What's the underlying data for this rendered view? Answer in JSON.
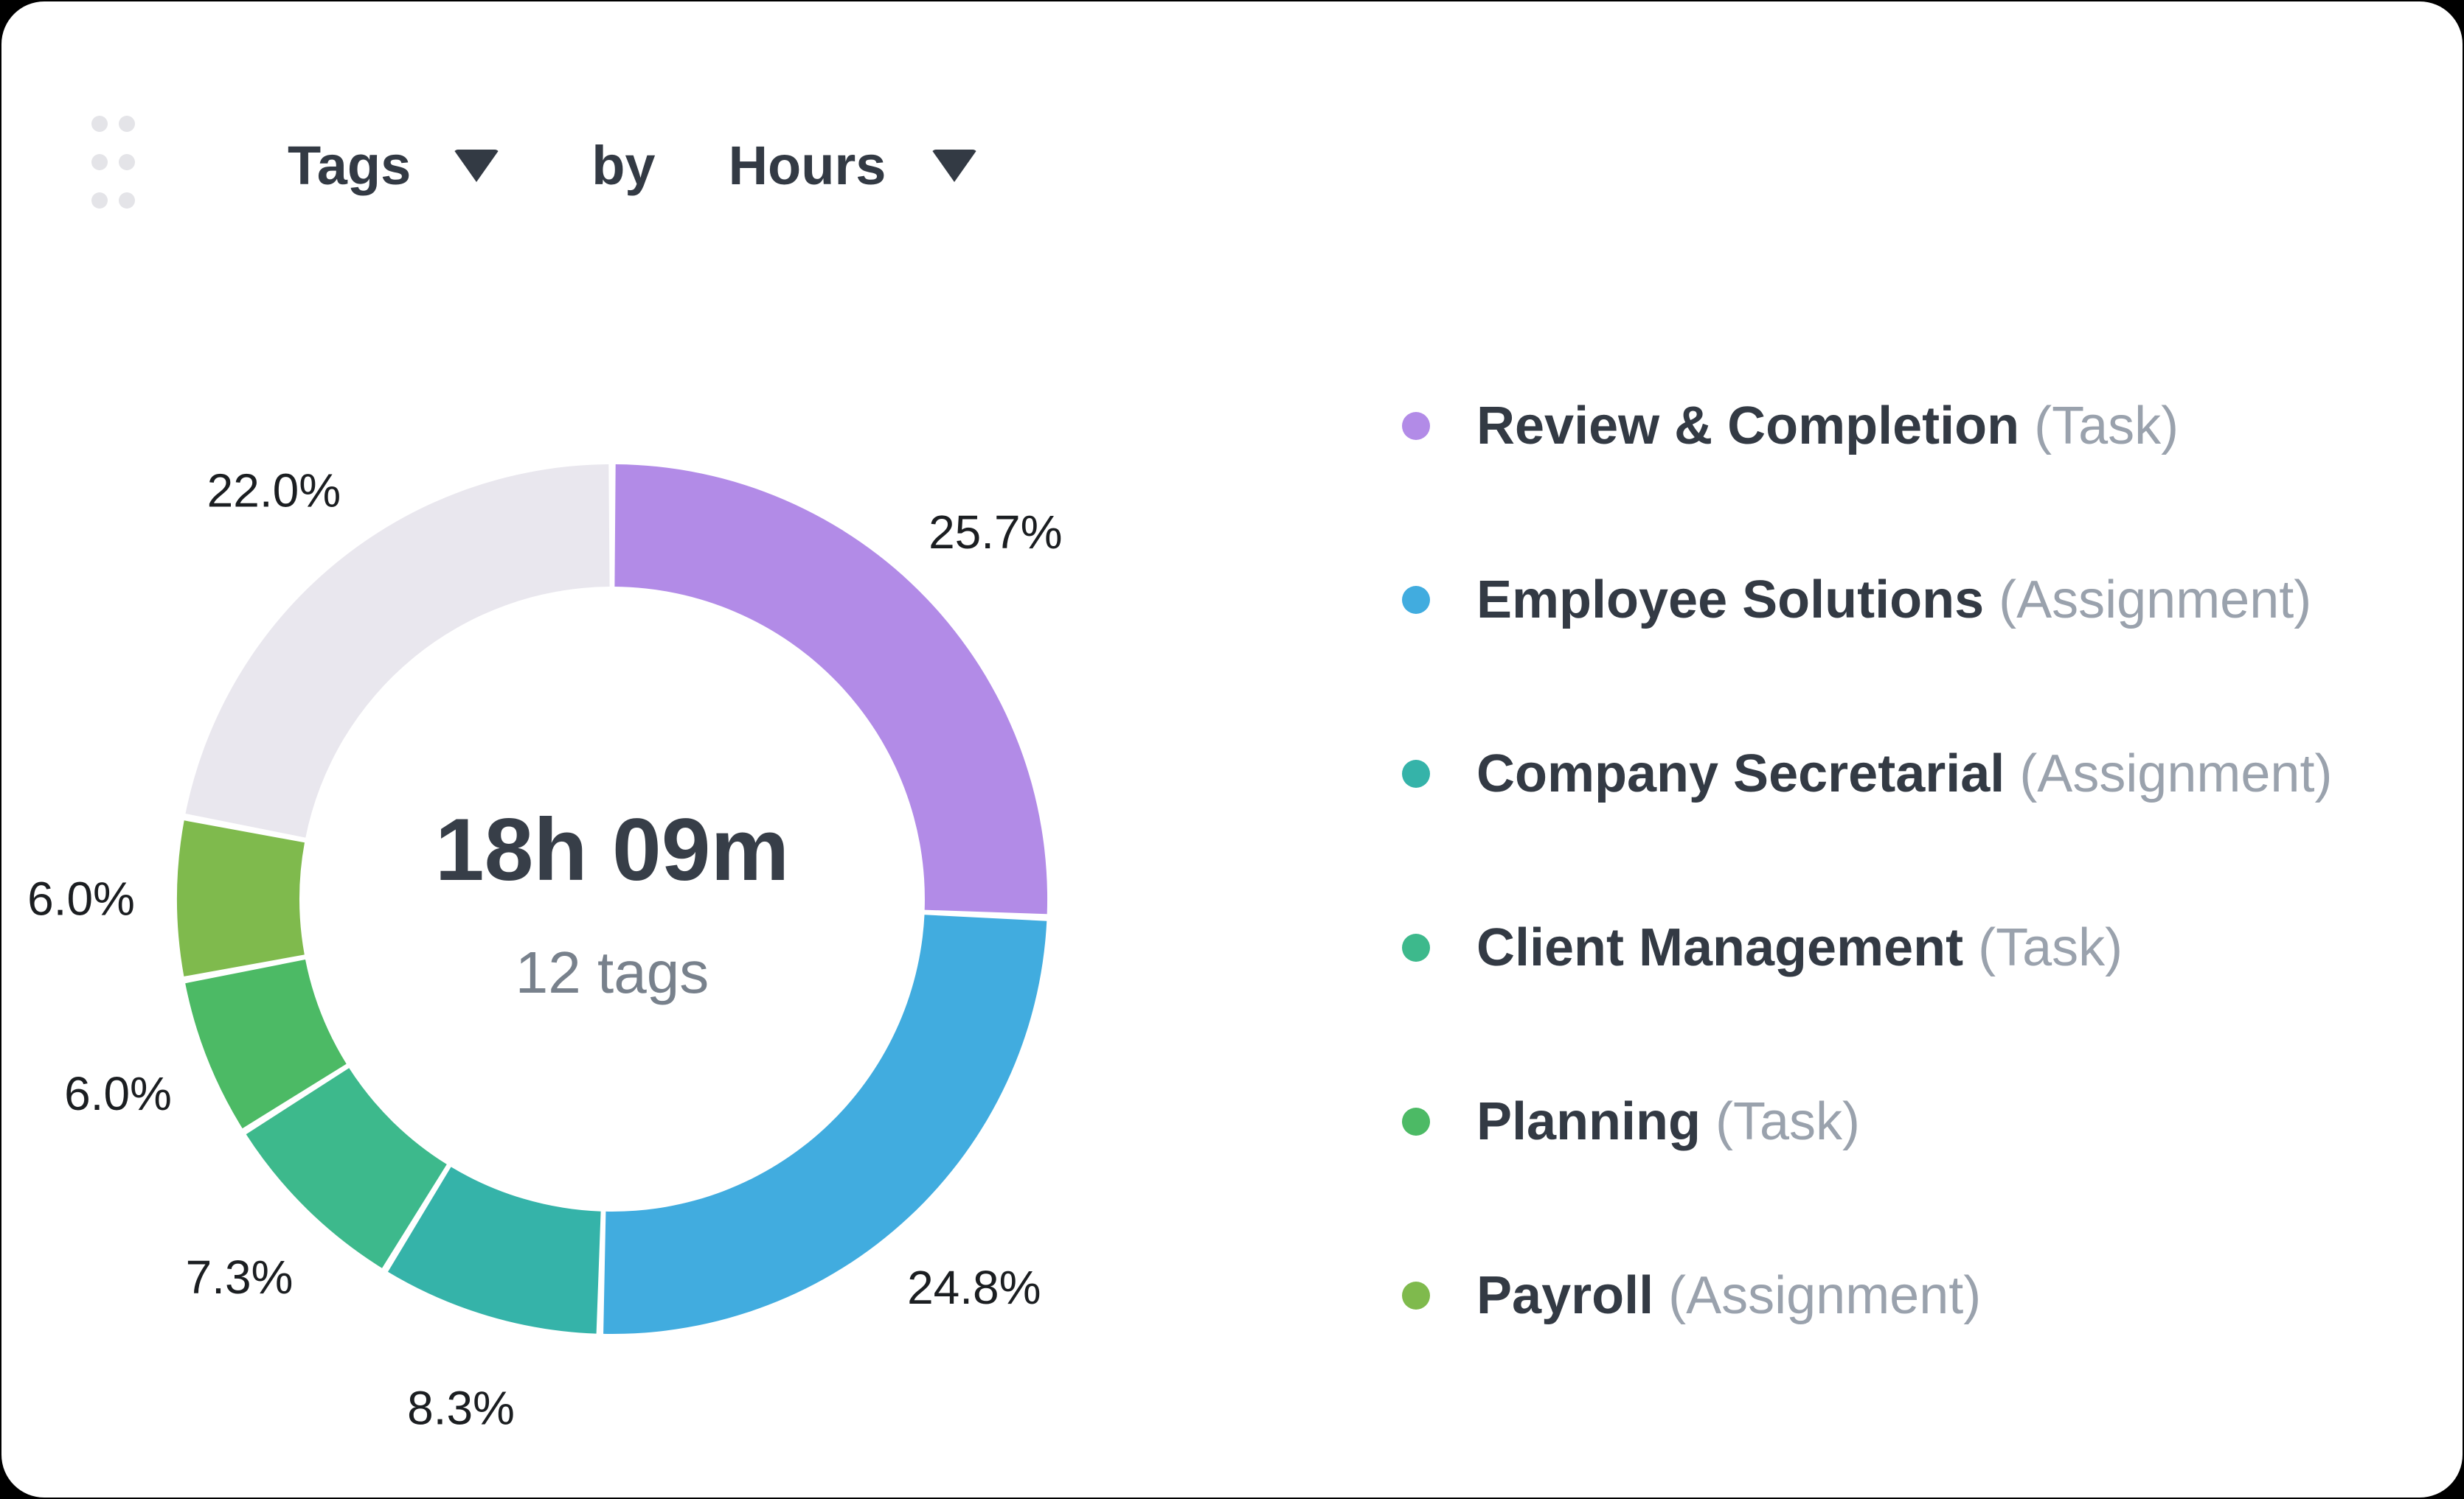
{
  "header": {
    "dimension_label": "Tags",
    "by_label": "by",
    "metric_label": "Hours"
  },
  "chart_data": {
    "type": "pie",
    "variant": "donut",
    "title": "Tags by Hours",
    "center_title": "18h 09m",
    "center_subtitle": "12 tags",
    "start_angle_deg": 0,
    "direction": "clockwise",
    "legend_position": "right",
    "slices": [
      {
        "name": "Review & Completion",
        "category": "Task",
        "percent": 25.7,
        "percent_label": "25.7%",
        "color": "#b28be7",
        "in_legend": true
      },
      {
        "name": "Employee Solutions",
        "category": "Assignment",
        "percent": 24.8,
        "percent_label": "24.8%",
        "color": "#41acdf",
        "in_legend": true
      },
      {
        "name": "Company Secretarial",
        "category": "Assignment",
        "percent": 8.3,
        "percent_label": "8.3%",
        "color": "#35b3a9",
        "in_legend": true
      },
      {
        "name": "Client Management",
        "category": "Task",
        "percent": 7.3,
        "percent_label": "7.3%",
        "color": "#3db98c",
        "in_legend": true
      },
      {
        "name": "Planning",
        "category": "Task",
        "percent": 6.0,
        "percent_label": "6.0%",
        "color": "#4cba65",
        "in_legend": true
      },
      {
        "name": "Payroll",
        "category": "Assignment",
        "percent": 6.0,
        "percent_label": "6.0%",
        "color": "#7fba4d",
        "in_legend": true
      },
      {
        "name": "",
        "category": "",
        "percent": 22.0,
        "percent_label": "22.0%",
        "color": "#e9e7ee",
        "in_legend": false
      }
    ]
  },
  "legend": {
    "items": [
      {
        "name": "Review & Completion",
        "type_label": "(Task)",
        "color": "#b28be7"
      },
      {
        "name": "Employee Solutions",
        "type_label": "(Assignment)",
        "color": "#41acdf"
      },
      {
        "name": "Company Secretarial",
        "type_label": "(Assignment)",
        "color": "#35b3a9"
      },
      {
        "name": "Client Management",
        "type_label": "(Task)",
        "color": "#3db98c"
      },
      {
        "name": "Planning",
        "type_label": "(Task)",
        "color": "#4cba65"
      },
      {
        "name": "Payroll",
        "type_label": "(Assignment)",
        "color": "#7fba4d"
      }
    ]
  },
  "colors": {
    "card_background": "#ffffff",
    "header_text": "#333a44",
    "percent_label_text": "#1b1e21",
    "center_title_text": "#373e48",
    "center_subtitle_text": "#78818c",
    "legend_type_text": "#9aa2ad",
    "drag_handle_dots": "#e4e4e8"
  }
}
